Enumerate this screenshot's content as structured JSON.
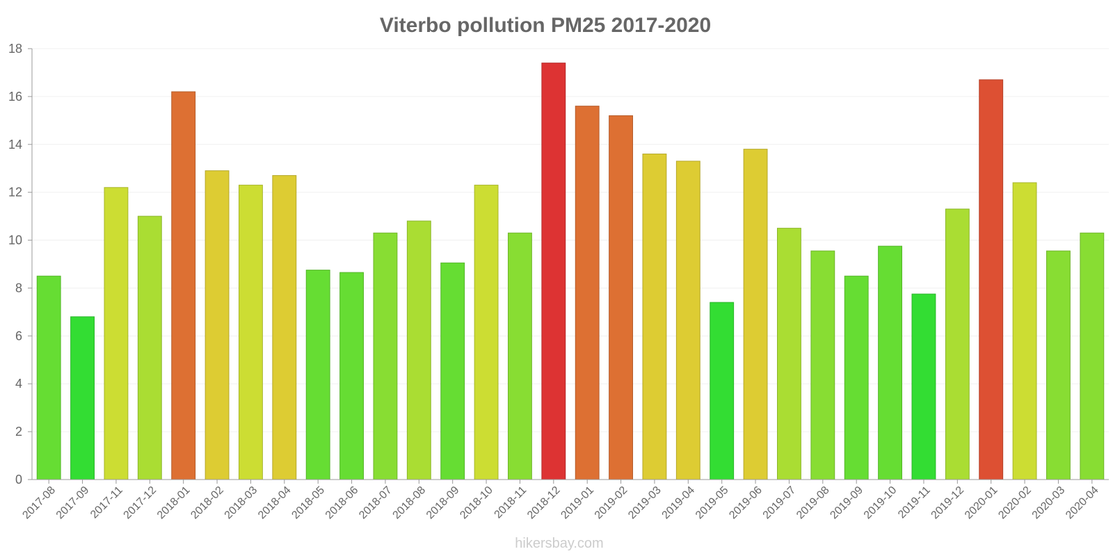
{
  "chart_data": {
    "type": "bar",
    "title": "Viterbo pollution PM25 2017-2020",
    "xlabel": "",
    "ylabel": "",
    "ylim": [
      0,
      18
    ],
    "yticks": [
      0,
      2,
      4,
      6,
      8,
      10,
      12,
      14,
      16,
      18
    ],
    "grid": true,
    "categories": [
      "2017-08",
      "2017-09",
      "2017-11",
      "2017-12",
      "2018-01",
      "2018-02",
      "2018-03",
      "2018-04",
      "2018-05",
      "2018-06",
      "2018-07",
      "2018-08",
      "2018-09",
      "2018-10",
      "2018-11",
      "2018-12",
      "2019-01",
      "2019-02",
      "2019-03",
      "2019-04",
      "2019-05",
      "2019-06",
      "2019-07",
      "2019-08",
      "2019-09",
      "2019-10",
      "2019-11",
      "2019-12",
      "2020-01",
      "2020-02",
      "2020-03",
      "2020-04"
    ],
    "values": [
      8.5,
      6.8,
      12.2,
      11.0,
      16.2,
      12.9,
      12.3,
      12.7,
      8.75,
      8.65,
      10.3,
      10.8,
      9.05,
      12.3,
      10.3,
      17.4,
      15.6,
      15.2,
      13.6,
      13.3,
      7.4,
      13.8,
      10.5,
      9.55,
      8.5,
      9.75,
      7.75,
      11.3,
      16.7,
      12.4,
      9.55,
      10.3
    ],
    "colors": [
      "#66dd33",
      "#33dd33",
      "#ccdd33",
      "#aadd33",
      "#dd7033",
      "#ddcc33",
      "#ccdd33",
      "#ddcc33",
      "#66dd33",
      "#66dd33",
      "#88dd33",
      "#aadd33",
      "#66dd33",
      "#ccdd33",
      "#88dd33",
      "#dd3333",
      "#dd7033",
      "#dd7033",
      "#ddcc33",
      "#ddcc33",
      "#33dd33",
      "#ddcc33",
      "#aadd33",
      "#88dd33",
      "#66dd33",
      "#66dd33",
      "#33dd33",
      "#aadd33",
      "#dd5033",
      "#ccdd33",
      "#88dd33",
      "#88dd33"
    ],
    "watermark": "hikersbay.com"
  }
}
